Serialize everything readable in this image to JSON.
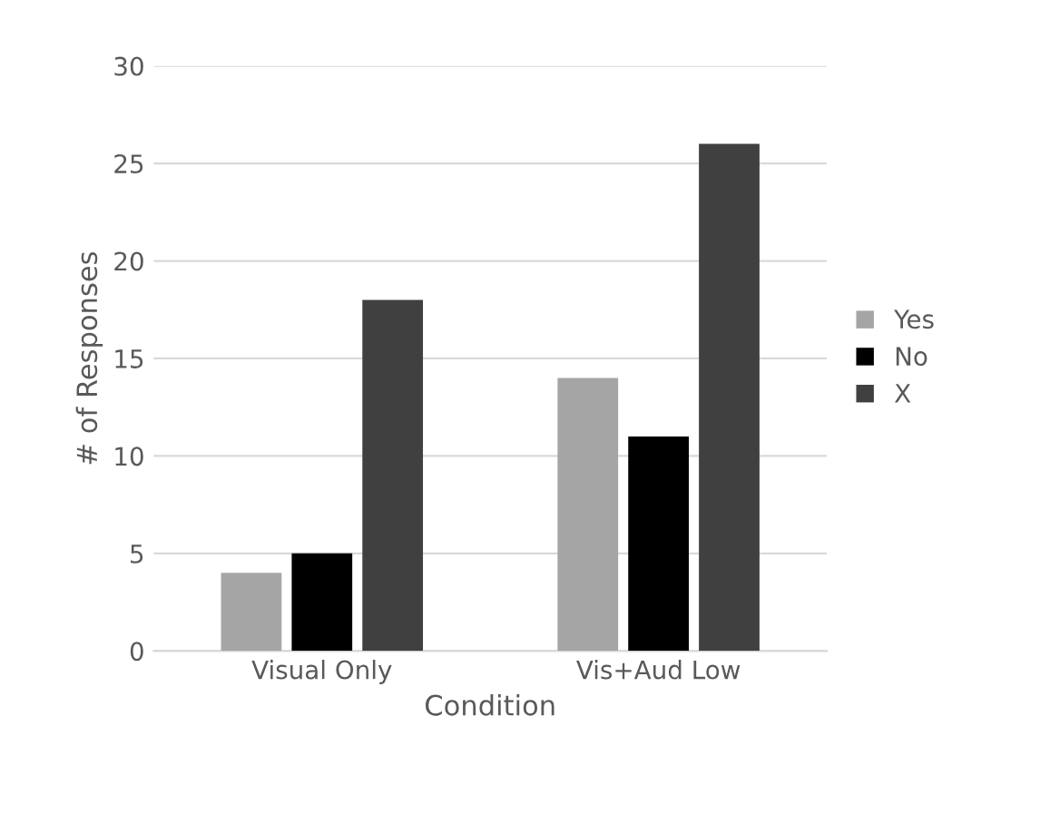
{
  "chart_data": {
    "type": "bar",
    "xlabel": "Condition",
    "ylabel": "# of Responses",
    "categories": [
      "Visual Only",
      "Vis+Aud Low"
    ],
    "series": [
      {
        "name": "Yes",
        "color": "#a5a5a5",
        "values": [
          4,
          14
        ]
      },
      {
        "name": "No",
        "color": "#000000",
        "values": [
          5,
          11
        ]
      },
      {
        "name": "X",
        "color": "#404040",
        "values": [
          18,
          26
        ]
      }
    ],
    "ylim": [
      0,
      30
    ],
    "yticks": [
      0,
      5,
      10,
      15,
      20,
      25,
      30
    ],
    "grid": "y",
    "legend": "right"
  }
}
